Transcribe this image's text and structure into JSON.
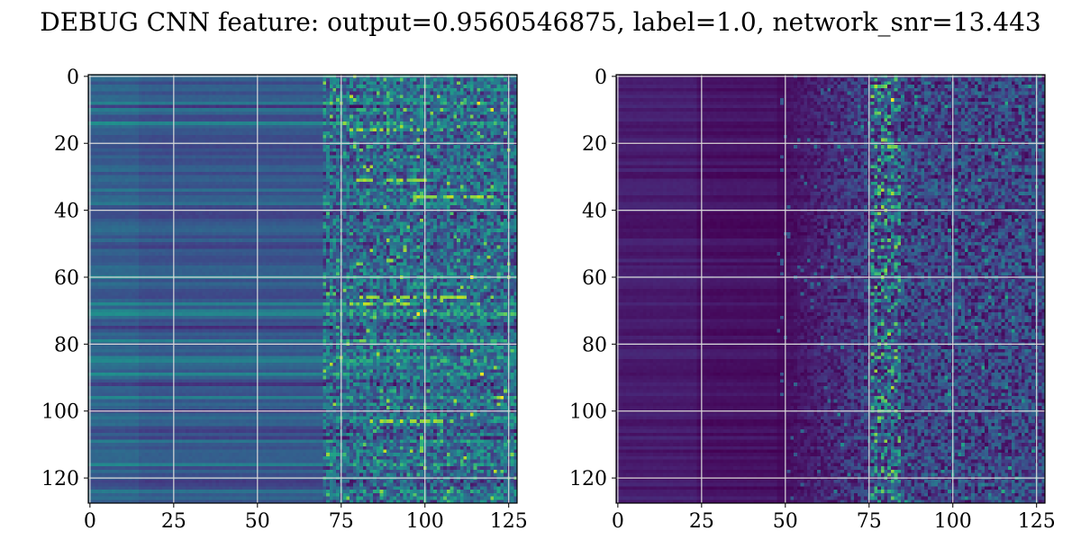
{
  "figure": {
    "title": "DEBUG CNN feature: output=0.9560546875, label=1.0, network_snr=13.443"
  },
  "chart_data": [
    {
      "type": "heatmap",
      "colormap": "viridis",
      "shape": [
        128,
        128
      ],
      "xlim": [
        -0.5,
        127.5
      ],
      "ylim": [
        127.5,
        -0.5
      ],
      "x_ticks": [
        0,
        25,
        50,
        75,
        100,
        125
      ],
      "y_ticks": [
        0,
        20,
        40,
        60,
        80,
        100,
        120
      ],
      "grid": true,
      "description_of_values": "left columns ~0-70 smooth horizontal banding in mid blue-teal; columns ~70-127 noisy with scattered bright green/yellow pixels",
      "highlight_rows": [
        66,
        68,
        103,
        16,
        31,
        36
      ]
    },
    {
      "type": "heatmap",
      "colormap": "viridis",
      "shape": [
        128,
        128
      ],
      "xlim": [
        -0.5,
        127.5
      ],
      "ylim": [
        127.5,
        -0.5
      ],
      "x_ticks": [
        0,
        25,
        50,
        75,
        100,
        125
      ],
      "y_ticks": [
        0,
        20,
        40,
        60,
        80,
        100,
        120
      ],
      "grid": true,
      "description_of_values": "mostly dark purple; columns ~50-127 noisy with brighter teal pixels concentrated near column ~80",
      "highlight_column": 80
    }
  ]
}
